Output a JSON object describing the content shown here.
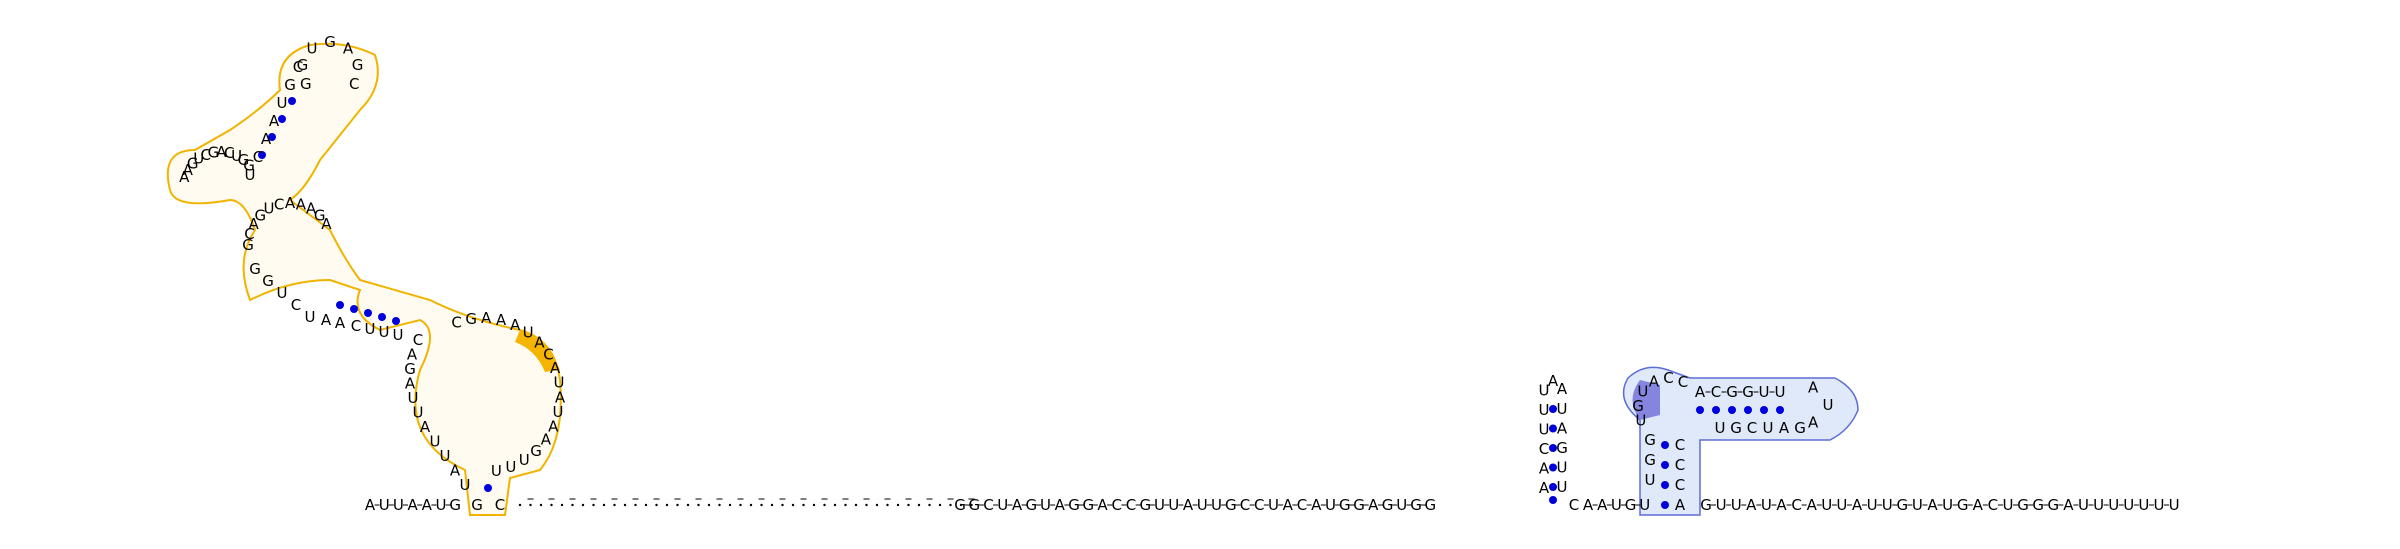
{
  "diagram": {
    "type": "rna-secondary-structure",
    "colors": {
      "backbone": "#000000",
      "base_pair_dot": "#0000dd",
      "region_orange_stroke": "#f0b400",
      "region_orange_fill": "#fff8e6",
      "region_orange_highlight": "#f4b400",
      "region_blue_stroke": "#5c6ed6",
      "region_blue_fill": "#d7e4f7",
      "region_blue_highlight": "#8585e0"
    },
    "leading_strand": "AUUAAUG",
    "dotted_linker_count": 44,
    "linear_segment": "GGCUAGUAGGACCGUUAUUGCCUACAUGGAGUGG",
    "small_hairpin": {
      "left_stem_bottom_to_top": "AACUUU",
      "loop": "AA",
      "right_stem_top_to_bottom": "UAGUU",
      "closing_base": "C"
    },
    "after_small_hairpin": "AAUGU",
    "blue_stem_left_bottom_to_top": "UGG",
    "blue_loop": "UGUACC",
    "blue_upper_arm": "ACGGUU",
    "blue_loop_tip": "AUA",
    "blue_lower_arm_right_to_left": "GAUCGU",
    "blue_stem_right_top_to_bottom": "CCCA",
    "trailing_strand": "GUUAUACAUUAUUGUAUGACUGGGAUUUUUUU",
    "orange_domain": {
      "closing_left": "G",
      "closing_right": "C",
      "left_stem_bottom_to_top": "UAUUAUUAGAC",
      "big_loop_top": "CGAAAUACAUAUAAGUUU",
      "bulge_left": "UUUCAAUCUGG",
      "middle_loop": "GCAGUCAAAGA",
      "upper_stem": "UCAAUGC",
      "apical_loop": "GGUGAGC"
    }
  }
}
